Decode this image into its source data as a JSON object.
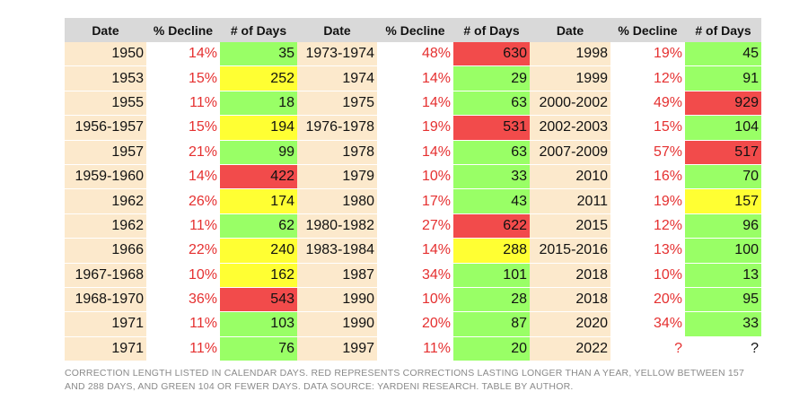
{
  "table": {
    "header": [
      "Date",
      "% Decline",
      "# of Days",
      "Date",
      "% Decline",
      "# of Days",
      "Date",
      "% Decline",
      "# of Days"
    ],
    "rows": [
      [
        "1950",
        "14%",
        "35",
        "1973-1974",
        "48%",
        "630",
        "1998",
        "19%",
        "45"
      ],
      [
        "1953",
        "15%",
        "252",
        "1974",
        "14%",
        "29",
        "1999",
        "12%",
        "91"
      ],
      [
        "1955",
        "11%",
        "18",
        "1975",
        "14%",
        "63",
        "2000-2002",
        "49%",
        "929"
      ],
      [
        "1956-1957",
        "15%",
        "194",
        "1976-1978",
        "19%",
        "531",
        "2002-2003",
        "15%",
        "104"
      ],
      [
        "1957",
        "21%",
        "99",
        "1978",
        "14%",
        "63",
        "2007-2009",
        "57%",
        "517"
      ],
      [
        "1959-1960",
        "14%",
        "422",
        "1979",
        "10%",
        "33",
        "2010",
        "16%",
        "70"
      ],
      [
        "1962",
        "26%",
        "174",
        "1980",
        "17%",
        "43",
        "2011",
        "19%",
        "157"
      ],
      [
        "1962",
        "11%",
        "62",
        "1980-1982",
        "27%",
        "622",
        "2015",
        "12%",
        "96"
      ],
      [
        "1966",
        "22%",
        "240",
        "1983-1984",
        "14%",
        "288",
        "2015-2016",
        "13%",
        "100"
      ],
      [
        "1967-1968",
        "10%",
        "162",
        "1987",
        "34%",
        "101",
        "2018",
        "10%",
        "13"
      ],
      [
        "1968-1970",
        "36%",
        "543",
        "1990",
        "10%",
        "28",
        "2018",
        "20%",
        "95"
      ],
      [
        "1971",
        "11%",
        "103",
        "1990",
        "20%",
        "87",
        "2020",
        "34%",
        "33"
      ],
      [
        "1971",
        "11%",
        "76",
        "1997",
        "11%",
        "20",
        "2022",
        "?",
        "?"
      ]
    ],
    "day_fills": [
      [
        "#99ff66",
        "#f24b4b",
        "#99ff66"
      ],
      [
        "#ffff33",
        "#99ff66",
        "#99ff66"
      ],
      [
        "#99ff66",
        "#99ff66",
        "#f24b4b"
      ],
      [
        "#ffff33",
        "#f24b4b",
        "#99ff66"
      ],
      [
        "#99ff66",
        "#99ff66",
        "#f24b4b"
      ],
      [
        "#f24b4b",
        "#99ff66",
        "#99ff66"
      ],
      [
        "#ffff33",
        "#99ff66",
        "#ffff33"
      ],
      [
        "#99ff66",
        "#f24b4b",
        "#99ff66"
      ],
      [
        "#ffff33",
        "#ffff33",
        "#99ff66"
      ],
      [
        "#ffff33",
        "#99ff66",
        "#99ff66"
      ],
      [
        "#f24b4b",
        "#99ff66",
        "#99ff66"
      ],
      [
        "#99ff66",
        "#99ff66",
        "#99ff66"
      ],
      [
        "#99ff66",
        "#99ff66",
        "#ffffff"
      ]
    ],
    "caption": "CORRECTION LENGTH LISTED IN CALENDAR DAYS. RED REPRESENTS CORRECTIONS LASTING LONGER THAN A YEAR, YELLOW BETWEEN 157 AND 288 DAYS, AND GREEN 104 OR FEWER DAYS. DATA SOURCE: YARDENI RESEARCH. TABLE BY AUTHOR."
  }
}
